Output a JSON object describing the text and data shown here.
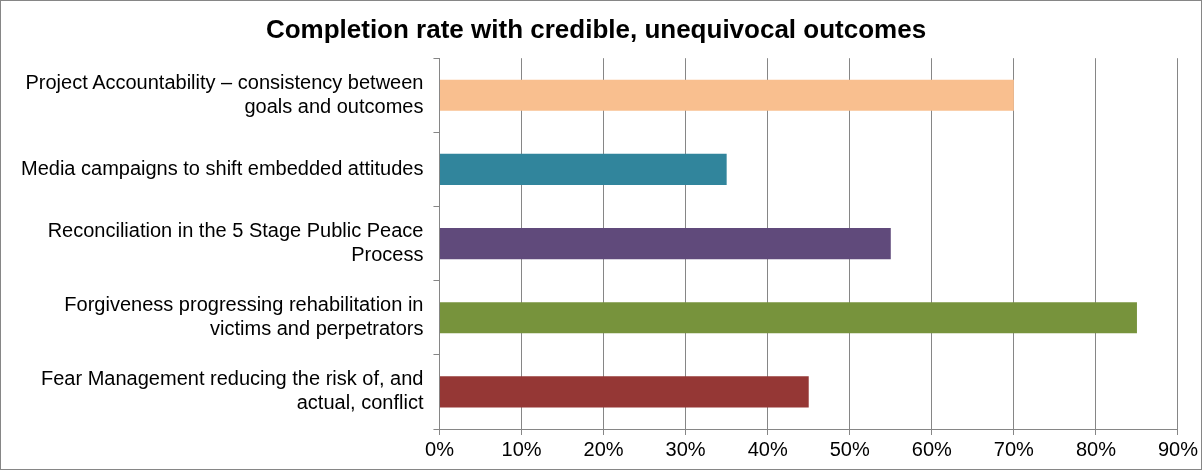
{
  "chart_data": {
    "type": "bar",
    "orientation": "horizontal",
    "title": "Completion rate with credible, unequivocal outcomes",
    "categories": [
      "Project Accountability – consistency between goals and outcomes",
      "Media campaigns to shift embedded attitudes",
      "Reconciliation in the 5 Stage Public Peace Process",
      "Forgiveness progressing rehabilitation in victims and perpetrators",
      "Fear Management reducing the risk of, and actual, conflict"
    ],
    "values": [
      70,
      35,
      55,
      85,
      45
    ],
    "colors": [
      "#f9bf8f",
      "#31859c",
      "#604a7b",
      "#77933c",
      "#953735"
    ],
    "xlim": [
      0,
      90
    ],
    "xticks": [
      {
        "value": 0,
        "label": "0%"
      },
      {
        "value": 10,
        "label": "10%"
      },
      {
        "value": 20,
        "label": "20%"
      },
      {
        "value": 30,
        "label": "30%"
      },
      {
        "value": 40,
        "label": "40%"
      },
      {
        "value": 50,
        "label": "50%"
      },
      {
        "value": 60,
        "label": "60%"
      },
      {
        "value": 70,
        "label": "70%"
      },
      {
        "value": 80,
        "label": "80%"
      },
      {
        "value": 90,
        "label": "90%"
      }
    ],
    "grid": "x",
    "legend": false
  }
}
